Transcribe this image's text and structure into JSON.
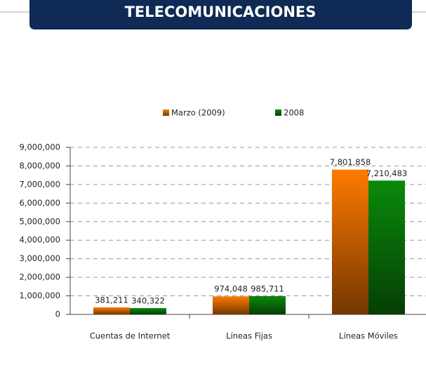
{
  "header": {
    "title": "TELECOMUNICACIONES"
  },
  "chart_data": {
    "type": "bar",
    "categories": [
      "Cuentas de Internet",
      "Líneas Fijas",
      "Líneas Móviles"
    ],
    "series": [
      {
        "name": "Marzo (2009)",
        "color": "#ff7a00",
        "values": [
          381211,
          974048,
          7801858
        ],
        "value_labels": [
          "381,211",
          "974,048",
          "7,801,858"
        ]
      },
      {
        "name": "2008",
        "color": "#0a8a0a",
        "values": [
          340322,
          985711,
          7210483
        ],
        "value_labels": [
          "340,322",
          "985,711",
          "7,210,483"
        ]
      }
    ],
    "ylim": [
      0,
      9000000
    ],
    "yticks": [
      0,
      {
        "value": 1000000,
        "label": "1,000,000"
      },
      {
        "value": 2000000,
        "label": "2,000,000"
      },
      {
        "value": 3000000,
        "label": "3,000,000"
      },
      {
        "value": 4000000,
        "label": "4,000,000"
      },
      {
        "value": 5000000,
        "label": "5,000,000"
      },
      {
        "value": 6000000,
        "label": "6,000,000"
      },
      {
        "value": 7000000,
        "label": "7,000,000"
      },
      {
        "value": 8000000,
        "label": "8,000,000"
      },
      {
        "value": 9000000,
        "label": "9,000,000"
      }
    ],
    "grid": true,
    "legend": "top"
  }
}
